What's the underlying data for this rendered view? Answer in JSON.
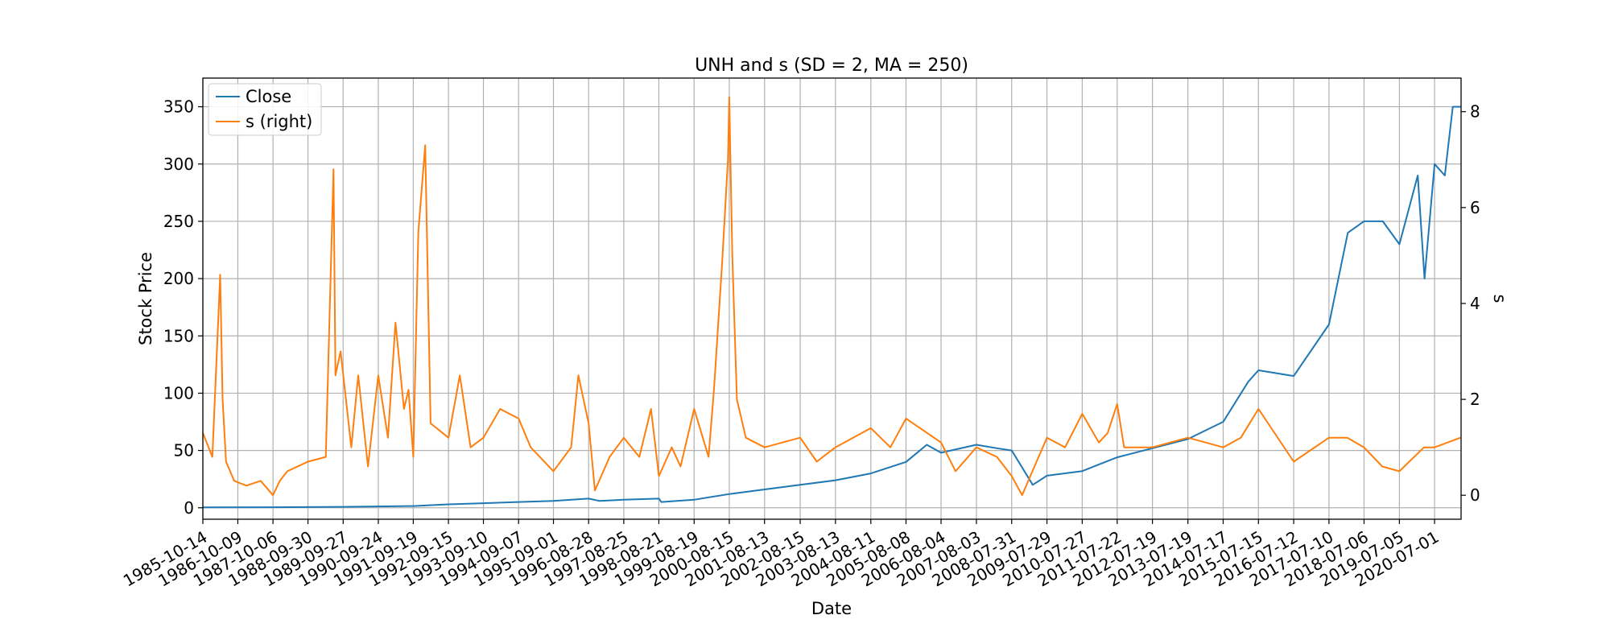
{
  "chart_data": {
    "type": "line",
    "title": "UNH and s (SD = 2, MA = 250)",
    "xlabel": "Date",
    "ylabel": "Stock Price",
    "y2label": "s",
    "xlim": [
      "1985-10-14",
      "2021-03-31"
    ],
    "ylim": [
      -10,
      375
    ],
    "y2lim": [
      -0.5,
      8.7
    ],
    "grid": true,
    "legend_position": "top-left",
    "x_ticks": [
      "1985-10-14",
      "1986-10-09",
      "1987-10-06",
      "1988-09-30",
      "1989-09-27",
      "1990-09-24",
      "1991-09-19",
      "1992-09-15",
      "1993-09-10",
      "1994-09-07",
      "1995-09-01",
      "1996-08-28",
      "1997-08-25",
      "1998-08-21",
      "1999-08-19",
      "2000-08-15",
      "2001-08-13",
      "2002-08-15",
      "2003-08-13",
      "2004-08-11",
      "2005-08-08",
      "2006-08-04",
      "2007-08-03",
      "2008-07-31",
      "2009-07-29",
      "2010-07-27",
      "2011-07-22",
      "2012-07-19",
      "2013-07-19",
      "2014-07-17",
      "2015-07-15",
      "2016-07-12",
      "2017-07-10",
      "2018-07-06",
      "2019-07-05",
      "2020-07-01"
    ],
    "y_ticks": [
      0,
      50,
      100,
      150,
      200,
      250,
      300,
      350
    ],
    "y2_ticks": [
      0,
      2,
      4,
      6,
      8
    ],
    "series": [
      {
        "name": "Close",
        "axis": "left",
        "color": "#1f77b4",
        "x": [
          "1985-10-14",
          "1987-10-06",
          "1989-09-27",
          "1991-09-19",
          "1992-09-15",
          "1993-09-10",
          "1994-09-07",
          "1995-09-01",
          "1996-08-28",
          "1996-12-15",
          "1997-08-25",
          "1998-08-21",
          "1998-09-15",
          "1999-08-19",
          "2000-08-15",
          "2001-08-13",
          "2002-08-15",
          "2003-08-13",
          "2004-08-11",
          "2005-08-08",
          "2006-03-10",
          "2006-08-04",
          "2007-08-03",
          "2008-03-01",
          "2008-07-31",
          "2009-03-05",
          "2009-07-29",
          "2010-07-27",
          "2011-07-22",
          "2012-07-19",
          "2013-07-19",
          "2014-07-17",
          "2015-04-01",
          "2015-07-15",
          "2016-07-12",
          "2017-07-10",
          "2018-01-20",
          "2018-07-06",
          "2019-01-15",
          "2019-07-05",
          "2020-01-10",
          "2020-03-20",
          "2020-07-01",
          "2020-10-15",
          "2021-01-05",
          "2021-03-25"
        ],
        "y": [
          0.4,
          0.5,
          0.8,
          1.5,
          3,
          4,
          5,
          6,
          8,
          6,
          7,
          8,
          5,
          7,
          12,
          16,
          20,
          24,
          30,
          40,
          55,
          48,
          55,
          52,
          50,
          20,
          28,
          32,
          44,
          52,
          60,
          75,
          110,
          120,
          115,
          160,
          240,
          250,
          250,
          230,
          290,
          200,
          300,
          290,
          350,
          350
        ]
      },
      {
        "name": "s (right)",
        "axis": "right",
        "color": "#ff7f0e",
        "x": [
          "1985-10-14",
          "1986-01-20",
          "1986-04-10",
          "1986-05-05",
          "1986-06-10",
          "1986-09-01",
          "1987-01-05",
          "1987-06-01",
          "1987-10-06",
          "1987-12-15",
          "1988-03-01",
          "1988-09-30",
          "1989-04-01",
          "1989-06-20",
          "1989-07-10",
          "1989-09-01",
          "1989-12-20",
          "1990-03-01",
          "1990-06-10",
          "1990-09-24",
          "1991-01-01",
          "1991-03-20",
          "1991-06-15",
          "1991-08-01",
          "1991-09-19",
          "1991-11-10",
          "1992-01-20",
          "1992-03-15",
          "1992-09-15",
          "1993-01-10",
          "1993-05-01",
          "1993-09-10",
          "1994-03-01",
          "1994-09-07",
          "1995-01-10",
          "1995-09-01",
          "1996-03-01",
          "1996-05-15",
          "1996-08-28",
          "1996-11-01",
          "1997-04-01",
          "1997-08-25",
          "1998-02-01",
          "1998-06-01",
          "1998-08-21",
          "1999-01-01",
          "1999-04-01",
          "1999-08-19",
          "2000-01-15",
          "2000-03-10",
          "2000-06-01",
          "2000-08-01",
          "2000-08-15",
          "2000-09-15",
          "2000-11-01",
          "2001-02-01",
          "2001-08-13",
          "2002-08-15",
          "2003-02-01",
          "2003-08-13",
          "2004-08-11",
          "2005-03-01",
          "2005-08-08",
          "2006-08-04",
          "2007-01-01",
          "2007-08-03",
          "2008-03-01",
          "2008-07-31",
          "2008-11-15",
          "2009-03-01",
          "2009-07-29",
          "2010-02-01",
          "2010-07-27",
          "2011-01-15",
          "2011-04-15",
          "2011-07-22",
          "2011-10-01",
          "2012-07-19",
          "2013-07-19",
          "2014-07-17",
          "2015-01-15",
          "2015-07-15",
          "2016-07-12",
          "2017-07-10",
          "2018-01-15",
          "2018-07-06",
          "2019-01-10",
          "2019-07-05",
          "2020-03-15",
          "2020-07-01",
          "2021-03-25"
        ],
        "y": [
          1.3,
          0.8,
          4.6,
          2.0,
          0.7,
          0.3,
          0.2,
          0.3,
          0.0,
          0.3,
          0.5,
          0.7,
          0.8,
          6.8,
          2.5,
          3.0,
          1.0,
          2.5,
          0.6,
          2.5,
          1.2,
          3.6,
          1.8,
          2.2,
          0.8,
          5.5,
          7.3,
          1.5,
          1.2,
          2.5,
          1.0,
          1.2,
          1.8,
          1.6,
          1.0,
          0.5,
          1.0,
          2.5,
          1.5,
          0.1,
          0.8,
          1.2,
          0.8,
          1.8,
          0.4,
          1.0,
          0.6,
          1.8,
          0.8,
          2.2,
          4.8,
          7.0,
          8.3,
          5.0,
          2.0,
          1.2,
          1.0,
          1.2,
          0.7,
          1.0,
          1.4,
          1.0,
          1.6,
          1.1,
          0.5,
          1.0,
          0.8,
          0.4,
          0.0,
          0.5,
          1.2,
          1.0,
          1.7,
          1.1,
          1.3,
          1.9,
          1.0,
          1.0,
          1.2,
          1.0,
          1.2,
          1.8,
          0.7,
          1.2,
          1.2,
          1.0,
          0.6,
          0.5,
          1.0,
          1.0,
          1.2
        ]
      }
    ]
  }
}
